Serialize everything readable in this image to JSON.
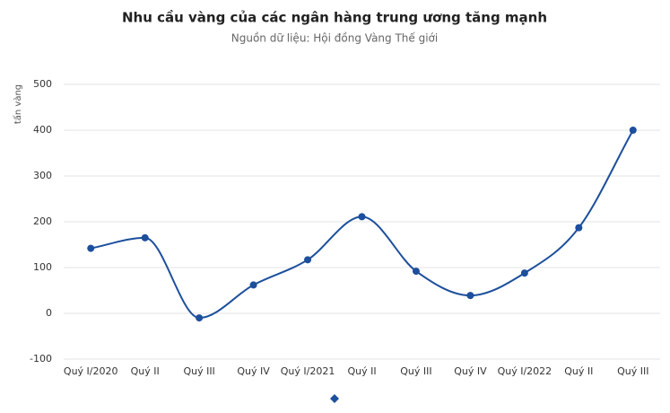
{
  "chart_data": {
    "type": "line",
    "title": "Nhu cầu vàng của các ngân hàng trung ương tăng mạnh",
    "subtitle": "Nguồn dữ liệu: Hội đồng Vàng Thế giới",
    "y_label": "tấn vàng",
    "categories": [
      "Quý I/2020",
      "Quý II",
      "Quý III",
      "Quý IV",
      "Quý I/2021",
      "Quý II",
      "Quý III",
      "Quý IV",
      "Quý I/2022",
      "Quý II",
      "Quý III"
    ],
    "series": [
      {
        "color": "#1c4f9c",
        "values": [
          142,
          165,
          -10,
          62,
          117,
          211,
          92,
          39,
          88,
          187,
          400
        ]
      }
    ],
    "ylim": [
      -100,
      500
    ],
    "yticks": [
      -100,
      0,
      100,
      200,
      300,
      400,
      500
    ],
    "grid": true
  }
}
